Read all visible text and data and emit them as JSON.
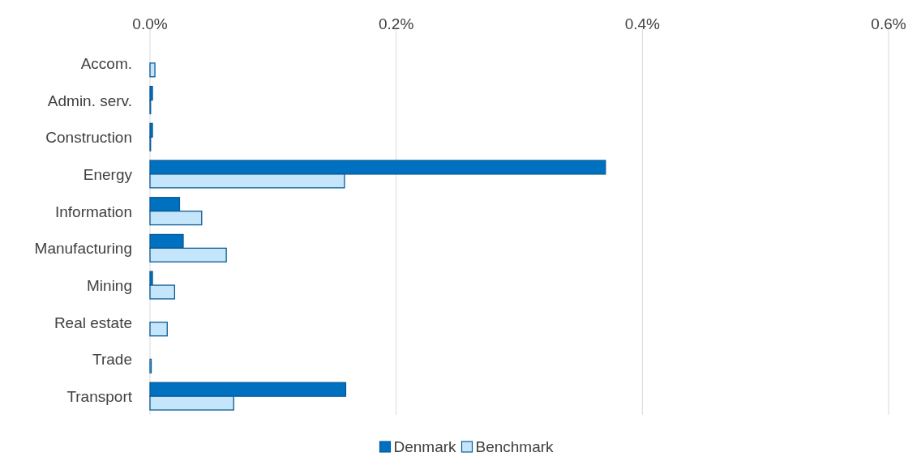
{
  "chart_data": {
    "type": "bar",
    "orientation": "horizontal",
    "categories": [
      "Accom.",
      "Admin. serv.",
      "Construction",
      "Energy",
      "Information",
      "Manufacturing",
      "Mining",
      "Real estate",
      "Trade",
      "Transport"
    ],
    "series": [
      {
        "name": "Denmark",
        "color": "#0070c0",
        "values": [
          0,
          0.002,
          0.002,
          0.37,
          0.024,
          0.027,
          0.002,
          0,
          0,
          0.159
        ]
      },
      {
        "name": "Benchmark",
        "color": "#c5e6fa",
        "values": [
          0.004,
          0.0005,
          0.0005,
          0.158,
          0.042,
          0.062,
          0.02,
          0.014,
          0.001,
          0.068
        ]
      }
    ],
    "xlim": [
      0,
      0.6
    ],
    "xticks": [
      {
        "value": 0,
        "label": "0.0%"
      },
      {
        "value": 0.2,
        "label": "0.2%"
      },
      {
        "value": 0.4,
        "label": "0.4%"
      },
      {
        "value": 0.6,
        "label": "0.6%"
      }
    ],
    "grid": "x",
    "legend": "bottom"
  }
}
